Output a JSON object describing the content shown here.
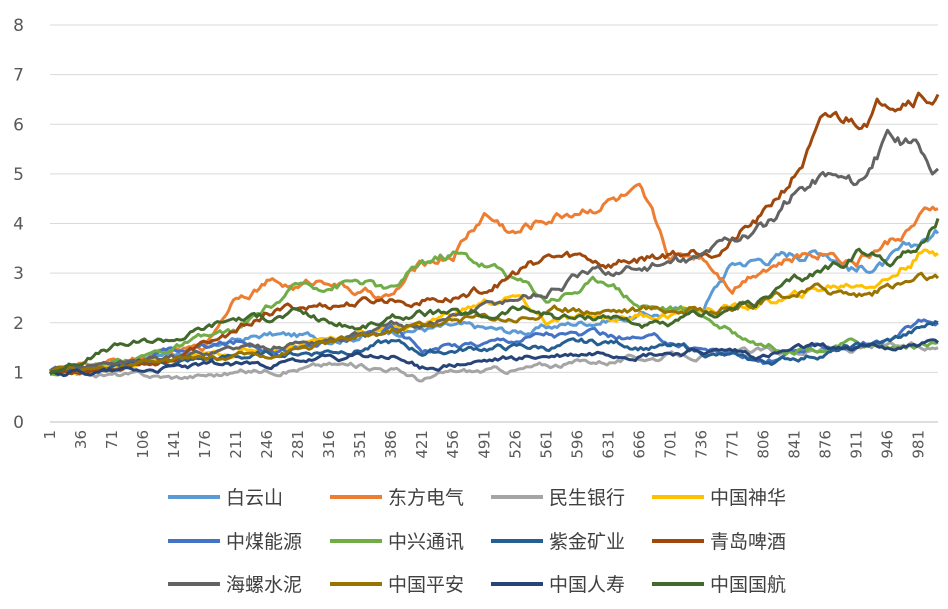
{
  "chart_data": {
    "type": "line",
    "title": "",
    "xlabel": "",
    "ylabel": "",
    "ylim": [
      0,
      8
    ],
    "yticks": [
      "0",
      "1",
      "2",
      "3",
      "4",
      "5",
      "6",
      "7",
      "8"
    ],
    "xlim": [
      1,
      1003
    ],
    "xticks": [
      "1",
      "36",
      "71",
      "106",
      "141",
      "176",
      "211",
      "246",
      "281",
      "316",
      "351",
      "386",
      "421",
      "456",
      "491",
      "526",
      "561",
      "596",
      "631",
      "666",
      "701",
      "736",
      "771",
      "806",
      "841",
      "876",
      "911",
      "946",
      "981"
    ],
    "grid": "horizontal",
    "legend": "bottom",
    "series": [
      {
        "name": "白云山",
        "color": "#5b9bd5",
        "x": [
          1,
          36,
          106,
          176,
          246,
          316,
          386,
          421,
          456,
          526,
          561,
          631,
          701,
          736,
          771,
          806,
          841,
          876,
          911,
          946,
          1003
        ],
        "y": [
          1.0,
          1.1,
          1.3,
          1.5,
          1.75,
          1.7,
          1.85,
          1.9,
          1.9,
          1.8,
          1.9,
          2.1,
          2.2,
          2.3,
          3.2,
          3.3,
          3.4,
          3.5,
          3.1,
          3.2,
          3.8
        ]
      },
      {
        "name": "东方电气",
        "color": "#ed7d31",
        "x": [
          1,
          106,
          176,
          211,
          246,
          281,
          316,
          351,
          386,
          421,
          456,
          491,
          526,
          561,
          596,
          631,
          666,
          701,
          736,
          771,
          806,
          841,
          876,
          911,
          946,
          1003
        ],
        "y": [
          1.0,
          1.3,
          1.5,
          2.6,
          2.85,
          2.7,
          2.9,
          2.6,
          2.5,
          3.2,
          3.4,
          4.2,
          3.8,
          4.1,
          4.3,
          4.5,
          4.5,
          3.3,
          3.4,
          2.8,
          3.2,
          3.3,
          3.5,
          3.3,
          3.6,
          4.3
        ]
      },
      {
        "name": "民生银行",
        "color": "#a5a5a5",
        "x": [
          1,
          71,
          141,
          246,
          316,
          386,
          421,
          456,
          526,
          596,
          666,
          736,
          806,
          876,
          946,
          1003
        ],
        "y": [
          1.0,
          0.95,
          0.9,
          1.05,
          1.15,
          1.1,
          0.85,
          1.0,
          1.05,
          1.2,
          1.3,
          1.35,
          1.4,
          1.45,
          1.5,
          1.5
        ]
      },
      {
        "name": "中国神华",
        "color": "#ffc000",
        "x": [
          1,
          71,
          141,
          211,
          281,
          351,
          421,
          491,
          526,
          561,
          631,
          701,
          771,
          806,
          841,
          876,
          911,
          946,
          981,
          1003
        ],
        "y": [
          1.0,
          1.1,
          1.2,
          1.4,
          1.6,
          1.8,
          2.0,
          2.4,
          2.5,
          2.0,
          2.1,
          2.2,
          2.3,
          2.4,
          2.5,
          2.7,
          2.8,
          2.9,
          3.4,
          3.4
        ]
      },
      {
        "name": "中煤能源",
        "color": "#4472c4",
        "x": [
          1,
          71,
          141,
          211,
          281,
          351,
          386,
          421,
          491,
          561,
          631,
          701,
          771,
          806,
          876,
          946,
          981,
          1003
        ],
        "y": [
          1.0,
          1.2,
          1.4,
          1.6,
          1.5,
          1.7,
          1.9,
          1.5,
          1.6,
          1.8,
          1.7,
          1.6,
          1.4,
          1.2,
          1.5,
          1.6,
          2.0,
          2.0
        ]
      },
      {
        "name": "中兴通讯",
        "color": "#70ad47",
        "x": [
          1,
          71,
          141,
          211,
          281,
          316,
          351,
          386,
          421,
          456,
          491,
          526,
          561,
          596,
          631,
          666,
          701,
          736,
          771,
          806,
          841,
          876,
          911,
          946,
          1003
        ],
        "y": [
          1.0,
          1.2,
          1.5,
          1.8,
          2.7,
          2.8,
          2.85,
          2.6,
          3.2,
          3.4,
          3.2,
          2.9,
          2.5,
          2.7,
          2.9,
          2.4,
          2.3,
          2.2,
          1.8,
          1.6,
          1.5,
          1.5,
          1.6,
          1.5,
          1.6
        ]
      },
      {
        "name": "紫金矿业",
        "color": "#255e91",
        "x": [
          1,
          71,
          141,
          211,
          281,
          351,
          386,
          421,
          491,
          561,
          631,
          701,
          771,
          806,
          876,
          946,
          1003
        ],
        "y": [
          1.0,
          1.1,
          1.2,
          1.3,
          1.4,
          1.5,
          1.6,
          1.4,
          1.5,
          1.5,
          1.6,
          1.5,
          1.3,
          1.2,
          1.4,
          1.6,
          2.0
        ]
      },
      {
        "name": "青岛啤酒",
        "color": "#9e480e",
        "x": [
          1,
          71,
          141,
          211,
          246,
          281,
          351,
          421,
          456,
          491,
          526,
          561,
          596,
          631,
          666,
          701,
          736,
          771,
          806,
          841,
          876,
          911,
          946,
          981,
          1003
        ],
        "y": [
          1.0,
          1.1,
          1.3,
          1.8,
          2.2,
          2.3,
          2.4,
          2.5,
          2.5,
          2.7,
          3.0,
          3.3,
          3.3,
          3.2,
          3.3,
          3.4,
          3.5,
          3.7,
          4.1,
          5.0,
          6.0,
          6.1,
          6.6,
          6.8,
          6.6
        ]
      },
      {
        "name": "海螺水泥",
        "color": "#636363",
        "x": [
          1,
          71,
          141,
          211,
          281,
          351,
          386,
          421,
          456,
          491,
          526,
          561,
          596,
          631,
          666,
          701,
          736,
          771,
          806,
          841,
          876,
          911,
          946,
          981,
          1003
        ],
        "y": [
          1.0,
          1.2,
          1.3,
          1.5,
          1.6,
          1.7,
          1.9,
          2.0,
          2.1,
          2.3,
          2.5,
          2.6,
          2.9,
          3.0,
          3.1,
          3.2,
          3.3,
          3.7,
          3.9,
          4.6,
          5.0,
          4.8,
          5.7,
          5.5,
          5.1
        ]
      },
      {
        "name": "中国平安",
        "color": "#997300",
        "x": [
          1,
          71,
          141,
          211,
          281,
          351,
          421,
          491,
          561,
          631,
          701,
          771,
          806,
          841,
          876,
          911,
          946,
          981,
          1003
        ],
        "y": [
          1.0,
          1.1,
          1.2,
          1.3,
          1.5,
          1.7,
          2.0,
          2.1,
          2.2,
          2.3,
          2.3,
          2.3,
          2.4,
          2.6,
          2.7,
          2.6,
          2.7,
          2.9,
          2.9
        ]
      },
      {
        "name": "中国人寿",
        "color": "#264478",
        "x": [
          1,
          71,
          141,
          211,
          281,
          351,
          386,
          421,
          491,
          561,
          631,
          701,
          771,
          806,
          876,
          946,
          1003
        ],
        "y": [
          1.0,
          1.05,
          1.1,
          1.15,
          1.2,
          1.3,
          1.3,
          1.1,
          1.2,
          1.3,
          1.4,
          1.4,
          1.4,
          1.3,
          1.5,
          1.5,
          1.6
        ]
      },
      {
        "name": "中国国航",
        "color": "#43682b",
        "x": [
          1,
          71,
          141,
          211,
          246,
          281,
          316,
          351,
          421,
          491,
          526,
          561,
          596,
          631,
          666,
          701,
          736,
          771,
          806,
          841,
          876,
          911,
          946,
          981,
          1003
        ],
        "y": [
          1.0,
          1.5,
          1.7,
          2.1,
          2.1,
          2.2,
          2.0,
          1.9,
          2.2,
          2.1,
          2.3,
          2.2,
          2.1,
          2.2,
          2.0,
          1.9,
          2.1,
          2.3,
          2.5,
          2.8,
          3.1,
          3.4,
          3.3,
          3.5,
          4.1
        ]
      }
    ]
  }
}
